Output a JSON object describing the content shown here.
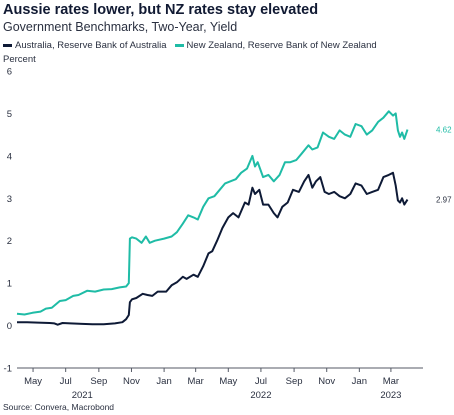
{
  "chart_data": {
    "type": "line",
    "title": "Aussie rates lower, but NZ rates stay elevated",
    "subtitle": "Government Benchmarks, Two-Year, Yield",
    "ylabel": "Percent",
    "ylim": [
      -1,
      6
    ],
    "yticks": [
      "-1",
      "0",
      "1",
      "2",
      "3",
      "4",
      "5",
      "6"
    ],
    "xlim": [
      "2021-04-01",
      "2023-04-30"
    ],
    "xticks": [
      {
        "date": "2021-05-01",
        "label": "May"
      },
      {
        "date": "2021-07-01",
        "label": "Jul"
      },
      {
        "date": "2021-09-01",
        "label": "Sep"
      },
      {
        "date": "2021-11-01",
        "label": "Nov"
      },
      {
        "date": "2022-01-01",
        "label": "Jan"
      },
      {
        "date": "2022-03-01",
        "label": "Mar"
      },
      {
        "date": "2022-05-01",
        "label": "May"
      },
      {
        "date": "2022-07-01",
        "label": "Jul"
      },
      {
        "date": "2022-09-01",
        "label": "Sep"
      },
      {
        "date": "2022-11-01",
        "label": "Nov"
      },
      {
        "date": "2023-01-01",
        "label": "Jan"
      },
      {
        "date": "2023-03-01",
        "label": "Mar"
      }
    ],
    "year_labels": [
      {
        "date": "2021-08-01",
        "label": "2021"
      },
      {
        "date": "2022-07-01",
        "label": "2022"
      },
      {
        "date": "2023-03-01",
        "label": "2023"
      }
    ],
    "grid": false,
    "legend_position": "top-left",
    "source": "Source: Convera, Macrobond",
    "series": [
      {
        "name": "Australia, Reserve Bank of Australia",
        "color": "#0e1a36",
        "end_label": "2.97",
        "points": [
          [
            "2021-04-01",
            0.08
          ],
          [
            "2021-04-20",
            0.08
          ],
          [
            "2021-05-10",
            0.07
          ],
          [
            "2021-06-01",
            0.06
          ],
          [
            "2021-06-10",
            0.05
          ],
          [
            "2021-06-16",
            0.02
          ],
          [
            "2021-06-25",
            0.06
          ],
          [
            "2021-07-10",
            0.05
          ],
          [
            "2021-08-01",
            0.04
          ],
          [
            "2021-08-20",
            0.03
          ],
          [
            "2021-09-10",
            0.03
          ],
          [
            "2021-10-01",
            0.05
          ],
          [
            "2021-10-15",
            0.08
          ],
          [
            "2021-10-22",
            0.15
          ],
          [
            "2021-10-27",
            0.25
          ],
          [
            "2021-10-29",
            0.55
          ],
          [
            "2021-11-02",
            0.62
          ],
          [
            "2021-11-10",
            0.65
          ],
          [
            "2021-11-22",
            0.75
          ],
          [
            "2021-12-01",
            0.72
          ],
          [
            "2021-12-10",
            0.7
          ],
          [
            "2021-12-20",
            0.8
          ],
          [
            "2022-01-05",
            0.8
          ],
          [
            "2022-01-15",
            0.95
          ],
          [
            "2022-01-25",
            1.02
          ],
          [
            "2022-02-05",
            1.15
          ],
          [
            "2022-02-12",
            1.1
          ],
          [
            "2022-02-25",
            1.2
          ],
          [
            "2022-03-05",
            1.15
          ],
          [
            "2022-03-15",
            1.4
          ],
          [
            "2022-03-25",
            1.7
          ],
          [
            "2022-04-01",
            1.75
          ],
          [
            "2022-04-10",
            2.0
          ],
          [
            "2022-04-20",
            2.3
          ],
          [
            "2022-05-01",
            2.55
          ],
          [
            "2022-05-10",
            2.65
          ],
          [
            "2022-05-20",
            2.55
          ],
          [
            "2022-06-01",
            2.9
          ],
          [
            "2022-06-08",
            2.85
          ],
          [
            "2022-06-15",
            3.25
          ],
          [
            "2022-06-20",
            3.1
          ],
          [
            "2022-06-28",
            3.2
          ],
          [
            "2022-07-05",
            2.85
          ],
          [
            "2022-07-15",
            2.85
          ],
          [
            "2022-07-25",
            2.65
          ],
          [
            "2022-08-01",
            2.55
          ],
          [
            "2022-08-10",
            2.8
          ],
          [
            "2022-08-20",
            2.9
          ],
          [
            "2022-08-30",
            3.2
          ],
          [
            "2022-09-10",
            3.15
          ],
          [
            "2022-09-20",
            3.4
          ],
          [
            "2022-09-28",
            3.55
          ],
          [
            "2022-10-05",
            3.25
          ],
          [
            "2022-10-12",
            3.4
          ],
          [
            "2022-10-20",
            3.5
          ],
          [
            "2022-10-28",
            3.15
          ],
          [
            "2022-11-05",
            3.1
          ],
          [
            "2022-11-15",
            3.15
          ],
          [
            "2022-11-25",
            3.05
          ],
          [
            "2022-12-05",
            3.0
          ],
          [
            "2022-12-15",
            3.1
          ],
          [
            "2022-12-25",
            3.35
          ],
          [
            "2023-01-05",
            3.3
          ],
          [
            "2023-01-15",
            3.1
          ],
          [
            "2023-01-25",
            3.15
          ],
          [
            "2023-02-05",
            3.2
          ],
          [
            "2023-02-15",
            3.5
          ],
          [
            "2023-02-25",
            3.55
          ],
          [
            "2023-03-05",
            3.6
          ],
          [
            "2023-03-10",
            3.3
          ],
          [
            "2023-03-14",
            2.95
          ],
          [
            "2023-03-18",
            2.9
          ],
          [
            "2023-03-22",
            3.0
          ],
          [
            "2023-03-26",
            2.85
          ],
          [
            "2023-04-01",
            2.97
          ]
        ]
      },
      {
        "name": "New Zealand, Reserve Bank of New Zealand",
        "color": "#1fbca6",
        "end_label": "4.62",
        "points": [
          [
            "2021-04-01",
            0.28
          ],
          [
            "2021-04-15",
            0.26
          ],
          [
            "2021-04-30",
            0.3
          ],
          [
            "2021-05-15",
            0.33
          ],
          [
            "2021-05-25",
            0.4
          ],
          [
            "2021-06-05",
            0.42
          ],
          [
            "2021-06-20",
            0.58
          ],
          [
            "2021-07-01",
            0.6
          ],
          [
            "2021-07-15",
            0.7
          ],
          [
            "2021-07-25",
            0.72
          ],
          [
            "2021-08-10",
            0.82
          ],
          [
            "2021-08-25",
            0.8
          ],
          [
            "2021-09-10",
            0.85
          ],
          [
            "2021-09-25",
            0.86
          ],
          [
            "2021-10-10",
            0.9
          ],
          [
            "2021-10-22",
            0.92
          ],
          [
            "2021-10-27",
            1.0
          ],
          [
            "2021-10-29",
            2.05
          ],
          [
            "2021-11-02",
            2.08
          ],
          [
            "2021-11-10",
            2.05
          ],
          [
            "2021-11-20",
            1.95
          ],
          [
            "2021-11-28",
            2.1
          ],
          [
            "2021-12-05",
            1.95
          ],
          [
            "2021-12-15",
            2.0
          ],
          [
            "2022-01-01",
            2.05
          ],
          [
            "2022-01-15",
            2.1
          ],
          [
            "2022-01-25",
            2.2
          ],
          [
            "2022-02-05",
            2.4
          ],
          [
            "2022-02-15",
            2.6
          ],
          [
            "2022-02-25",
            2.55
          ],
          [
            "2022-03-05",
            2.5
          ],
          [
            "2022-03-15",
            2.8
          ],
          [
            "2022-03-25",
            3.0
          ],
          [
            "2022-04-05",
            3.05
          ],
          [
            "2022-04-15",
            3.2
          ],
          [
            "2022-04-25",
            3.35
          ],
          [
            "2022-05-05",
            3.4
          ],
          [
            "2022-05-15",
            3.45
          ],
          [
            "2022-05-25",
            3.6
          ],
          [
            "2022-06-05",
            3.7
          ],
          [
            "2022-06-15",
            4.0
          ],
          [
            "2022-06-20",
            3.75
          ],
          [
            "2022-06-25",
            3.85
          ],
          [
            "2022-07-05",
            3.5
          ],
          [
            "2022-07-15",
            3.55
          ],
          [
            "2022-07-25",
            3.4
          ],
          [
            "2022-08-05",
            3.55
          ],
          [
            "2022-08-15",
            3.85
          ],
          [
            "2022-08-25",
            3.85
          ],
          [
            "2022-09-05",
            3.9
          ],
          [
            "2022-09-15",
            4.05
          ],
          [
            "2022-09-28",
            4.25
          ],
          [
            "2022-10-05",
            4.15
          ],
          [
            "2022-10-15",
            4.2
          ],
          [
            "2022-10-25",
            4.55
          ],
          [
            "2022-11-05",
            4.45
          ],
          [
            "2022-11-15",
            4.4
          ],
          [
            "2022-11-25",
            4.6
          ],
          [
            "2022-12-05",
            4.5
          ],
          [
            "2022-12-15",
            4.45
          ],
          [
            "2022-12-25",
            4.75
          ],
          [
            "2023-01-05",
            4.7
          ],
          [
            "2023-01-15",
            4.5
          ],
          [
            "2023-01-25",
            4.6
          ],
          [
            "2023-02-05",
            4.8
          ],
          [
            "2023-02-15",
            4.9
          ],
          [
            "2023-02-25",
            5.05
          ],
          [
            "2023-03-05",
            4.95
          ],
          [
            "2023-03-10",
            5.0
          ],
          [
            "2023-03-14",
            4.6
          ],
          [
            "2023-03-18",
            4.45
          ],
          [
            "2023-03-22",
            4.55
          ],
          [
            "2023-03-26",
            4.4
          ],
          [
            "2023-04-01",
            4.62
          ]
        ]
      }
    ]
  }
}
